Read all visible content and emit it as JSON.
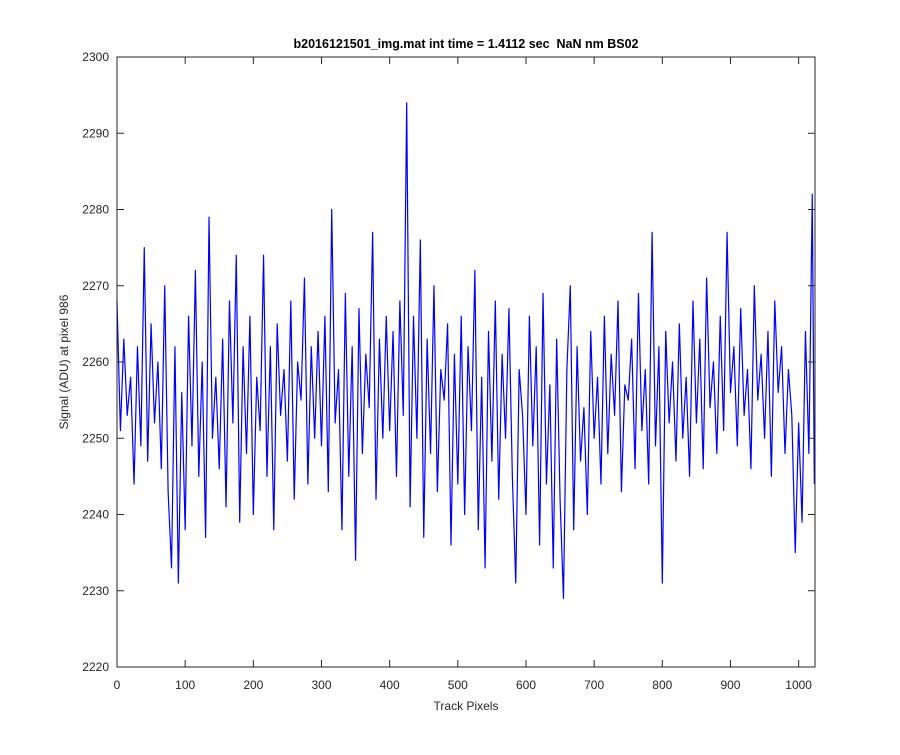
{
  "chart_data": {
    "type": "line",
    "title": "b2016121501_img.mat int time = 1.4112 sec  NaN nm BS02",
    "x_label": "Track Pixels",
    "y_label": "Signal (ADU) at pixel 986",
    "xlim": [
      0,
      1024
    ],
    "ylim": [
      2220,
      2300
    ],
    "xticks": [
      0,
      100,
      200,
      300,
      400,
      500,
      600,
      700,
      800,
      900,
      1000
    ],
    "yticks": [
      2220,
      2230,
      2240,
      2250,
      2260,
      2270,
      2280,
      2290,
      2300
    ],
    "grid": false,
    "x": [
      0,
      5,
      10,
      15,
      20,
      25,
      30,
      35,
      40,
      45,
      50,
      55,
      60,
      65,
      70,
      75,
      80,
      85,
      90,
      95,
      100,
      105,
      110,
      115,
      120,
      125,
      130,
      135,
      140,
      145,
      150,
      155,
      160,
      165,
      170,
      175,
      180,
      185,
      190,
      195,
      200,
      205,
      210,
      215,
      220,
      225,
      230,
      235,
      240,
      245,
      250,
      255,
      260,
      265,
      270,
      275,
      280,
      285,
      290,
      295,
      300,
      305,
      310,
      315,
      320,
      325,
      330,
      335,
      340,
      345,
      350,
      355,
      360,
      365,
      370,
      375,
      380,
      385,
      390,
      395,
      400,
      405,
      410,
      415,
      420,
      425,
      430,
      435,
      440,
      445,
      450,
      455,
      460,
      465,
      470,
      475,
      480,
      485,
      490,
      495,
      500,
      505,
      510,
      515,
      520,
      525,
      530,
      535,
      540,
      545,
      550,
      555,
      560,
      565,
      570,
      575,
      580,
      585,
      590,
      595,
      600,
      605,
      610,
      615,
      620,
      625,
      630,
      635,
      640,
      645,
      650,
      655,
      660,
      665,
      670,
      675,
      680,
      685,
      690,
      695,
      700,
      705,
      710,
      715,
      720,
      725,
      730,
      735,
      740,
      745,
      750,
      755,
      760,
      765,
      770,
      775,
      780,
      785,
      790,
      795,
      800,
      805,
      810,
      815,
      820,
      825,
      830,
      835,
      840,
      845,
      850,
      855,
      860,
      865,
      870,
      875,
      880,
      885,
      890,
      895,
      900,
      905,
      910,
      915,
      920,
      925,
      930,
      935,
      940,
      945,
      950,
      955,
      960,
      965,
      970,
      975,
      980,
      985,
      990,
      995,
      1000,
      1005,
      1010,
      1015,
      1020,
      1023
    ],
    "series": [
      {
        "color": "#0000ff",
        "values": [
          2268,
          2251,
          2263,
          2253,
          2258,
          2244,
          2262,
          2249,
          2275,
          2247,
          2265,
          2252,
          2260,
          2246,
          2270,
          2243,
          2233,
          2262,
          2231,
          2256,
          2238,
          2266,
          2249,
          2272,
          2245,
          2260,
          2237,
          2279,
          2250,
          2258,
          2246,
          2263,
          2241,
          2268,
          2252,
          2274,
          2239,
          2262,
          2248,
          2266,
          2240,
          2258,
          2251,
          2274,
          2245,
          2262,
          2238,
          2265,
          2253,
          2259,
          2247,
          2268,
          2242,
          2260,
          2255,
          2271,
          2244,
          2262,
          2250,
          2264,
          2249,
          2266,
          2243,
          2280,
          2252,
          2259,
          2238,
          2269,
          2245,
          2262,
          2234,
          2267,
          2248,
          2261,
          2254,
          2277,
          2242,
          2263,
          2250,
          2266,
          2251,
          2264,
          2245,
          2268,
          2253,
          2294,
          2241,
          2266,
          2250,
          2276,
          2237,
          2263,
          2248,
          2270,
          2243,
          2259,
          2255,
          2265,
          2236,
          2261,
          2244,
          2266,
          2240,
          2262,
          2251,
          2272,
          2238,
          2258,
          2233,
          2264,
          2247,
          2268,
          2242,
          2261,
          2250,
          2267,
          2245,
          2231,
          2259,
          2253,
          2240,
          2266,
          2249,
          2262,
          2236,
          2269,
          2244,
          2257,
          2233,
          2263,
          2242,
          2229,
          2259,
          2270,
          2238,
          2262,
          2247,
          2254,
          2240,
          2264,
          2250,
          2258,
          2244,
          2266,
          2248,
          2261,
          2253,
          2268,
          2243,
          2257,
          2255,
          2263,
          2246,
          2269,
          2251,
          2259,
          2244,
          2277,
          2249,
          2262,
          2231,
          2264,
          2252,
          2260,
          2247,
          2265,
          2250,
          2258,
          2245,
          2268,
          2252,
          2263,
          2246,
          2271,
          2254,
          2260,
          2248,
          2266,
          2251,
          2277,
          2256,
          2262,
          2249,
          2267,
          2253,
          2259,
          2246,
          2270,
          2255,
          2261,
          2250,
          2264,
          2245,
          2268,
          2256,
          2262,
          2248,
          2259,
          2253,
          2235,
          2252,
          2239,
          2264,
          2248,
          2282,
          2244
        ]
      }
    ]
  }
}
